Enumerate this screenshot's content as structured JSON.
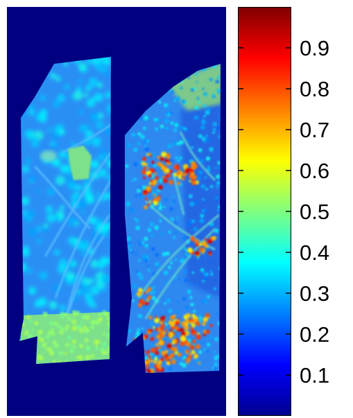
{
  "chart_data": {
    "type": "heatmap",
    "colormap": "jet",
    "background_color": "#000080",
    "colorbar": {
      "range": [
        0,
        1
      ],
      "tick_values": [
        0.1,
        0.2,
        0.3,
        0.4,
        0.5,
        0.6,
        0.7,
        0.8,
        0.9
      ],
      "tick_labels": [
        "0.1",
        "0.2",
        "0.3",
        "0.4",
        "0.5",
        "0.6",
        "0.7",
        "0.8",
        "0.9"
      ],
      "location": "right"
    },
    "panels": [
      {
        "name": "",
        "dominant_level": 0.35
      },
      {
        "name": "",
        "dominant_level": 0.33
      }
    ]
  }
}
